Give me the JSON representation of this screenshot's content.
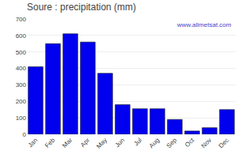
{
  "chart_data": {
    "type": "bar",
    "title": "Soure : precipitation (mm)",
    "categories": [
      "Jan",
      "Feb",
      "Mar",
      "Apr",
      "May",
      "Jun",
      "Jul",
      "Aug",
      "Sep",
      "Oct",
      "Nov",
      "Dec"
    ],
    "values": [
      410,
      550,
      610,
      560,
      370,
      180,
      155,
      155,
      90,
      20,
      40,
      150
    ],
    "color": "#0000ee",
    "ylim": [
      0,
      700
    ],
    "yticks": [
      0,
      100,
      200,
      300,
      400,
      500,
      600,
      700
    ],
    "grid": true,
    "annotations": [
      "www.allmetsat.com"
    ]
  }
}
